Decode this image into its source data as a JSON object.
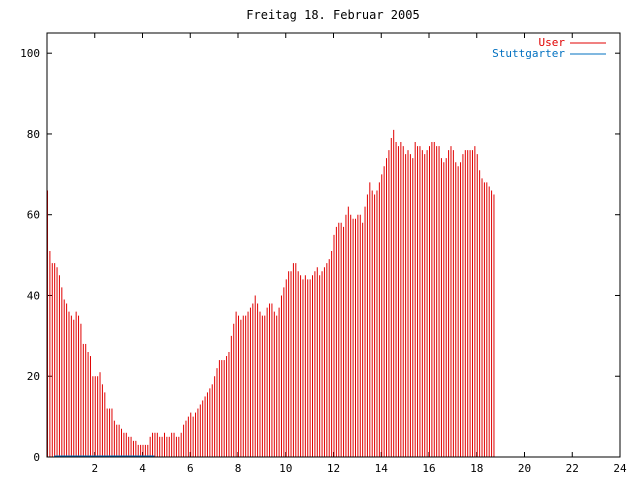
{
  "chart_data": {
    "type": "bar",
    "title": "Freitag 18. Februar 2005",
    "xlim": [
      0,
      24
    ],
    "ylim": [
      0,
      105
    ],
    "x_ticks": [
      2,
      4,
      6,
      8,
      10,
      12,
      14,
      16,
      18,
      20,
      22,
      24
    ],
    "y_ticks": [
      0,
      20,
      40,
      60,
      80,
      100
    ],
    "legend_position": "top-right",
    "bar_interval_hours": 0.1,
    "series": [
      {
        "name": "User",
        "color": "#e00000",
        "values": [
          66,
          51,
          48,
          48,
          47,
          45,
          42,
          39,
          38,
          36,
          35,
          34,
          36,
          35,
          33,
          28,
          28,
          26,
          25,
          20,
          20,
          20,
          21,
          18,
          16,
          12,
          12,
          12,
          9,
          8,
          8,
          7,
          6,
          6,
          5,
          5,
          4,
          4,
          3,
          3,
          3,
          3,
          3,
          5,
          6,
          6,
          6,
          5,
          5,
          6,
          5,
          5,
          6,
          6,
          5,
          5,
          6,
          8,
          9,
          10,
          11,
          10,
          11,
          12,
          13,
          14,
          15,
          16,
          17,
          18,
          20,
          22,
          24,
          24,
          24,
          25,
          26,
          30,
          33,
          36,
          35,
          34,
          35,
          35,
          36,
          37,
          38,
          40,
          38,
          36,
          35,
          35,
          37,
          38,
          38,
          36,
          35,
          37,
          40,
          42,
          44,
          46,
          46,
          48,
          48,
          46,
          45,
          44,
          45,
          44,
          44,
          45,
          46,
          47,
          45,
          46,
          47,
          48,
          49,
          51,
          55,
          57,
          58,
          58,
          57,
          60,
          62,
          60,
          59,
          59,
          60,
          60,
          58,
          62,
          65,
          68,
          66,
          65,
          66,
          68,
          70,
          72,
          74,
          76,
          79,
          81,
          78,
          77,
          78,
          77,
          75,
          76,
          75,
          74,
          78,
          77,
          77,
          76,
          75,
          76,
          77,
          78,
          78,
          77,
          77,
          74,
          73,
          74,
          76,
          77,
          76,
          73,
          72,
          73,
          75,
          76,
          76,
          76,
          76,
          77,
          75,
          71,
          69,
          68,
          68,
          67,
          66,
          65
        ]
      },
      {
        "name": "Stuttgarter",
        "color": "#0070c0",
        "segments": [
          [
            0.3,
            4.5
          ]
        ],
        "values": []
      }
    ]
  }
}
